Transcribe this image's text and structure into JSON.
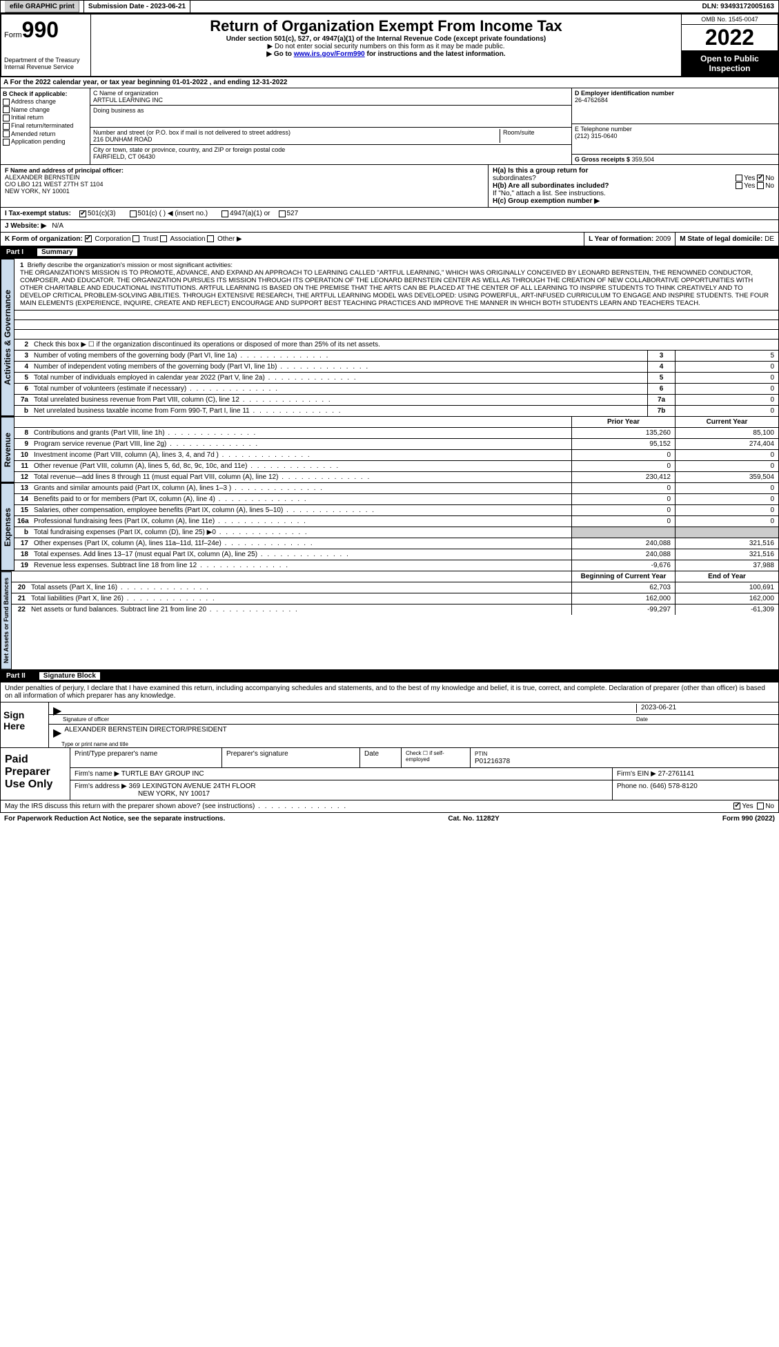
{
  "top": {
    "efile": "efile GRAPHIC print",
    "submission_label": "Submission Date - 2023-06-21",
    "dln": "DLN: 93493172005163"
  },
  "header": {
    "form_word": "Form",
    "form_num": "990",
    "title": "Return of Organization Exempt From Income Tax",
    "subtitle": "Under section 501(c), 527, or 4947(a)(1) of the Internal Revenue Code (except private foundations)",
    "note1": "▶ Do not enter social security numbers on this form as it may be made public.",
    "note2_pre": "▶ Go to ",
    "note2_link": "www.irs.gov/Form990",
    "note2_post": " for instructions and the latest information.",
    "dept": "Department of the Treasury",
    "irs": "Internal Revenue Service",
    "omb": "OMB No. 1545-0047",
    "year": "2022",
    "open": "Open to Public Inspection"
  },
  "section_a": "A For the 2022 calendar year, or tax year beginning 01-01-2022    , and ending 12-31-2022",
  "box_b": {
    "title": "B Check if applicable:",
    "items": [
      "Address change",
      "Name change",
      "Initial return",
      "Final return/terminated",
      "Amended return",
      "Application pending"
    ]
  },
  "box_c": {
    "name_label": "C Name of organization",
    "name": "ARTFUL LEARNING INC",
    "dba_label": "Doing business as",
    "addr_label": "Number and street (or P.O. box if mail is not delivered to street address)",
    "addr": "216 DUNHAM ROAD",
    "room_label": "Room/suite",
    "city_label": "City or town, state or province, country, and ZIP or foreign postal code",
    "city": "FAIRFIELD, CT  06430"
  },
  "box_d": {
    "label": "D Employer identification number",
    "val": "26-4762684"
  },
  "box_e": {
    "label": "E Telephone number",
    "val": "(212) 315-0640"
  },
  "box_g": {
    "label": "G Gross receipts $",
    "val": "359,504"
  },
  "box_f": {
    "label": "F  Name and address of principal officer:",
    "name": "ALEXANDER BERNSTEIN",
    "addr1": "C/O LBO 121 WEST 27TH ST 1104",
    "addr2": "NEW YORK, NY  10001"
  },
  "box_h": {
    "a_label": "H(a)  Is this a group return for",
    "a_sub": "subordinates?",
    "b_label": "H(b)  Are all subordinates included?",
    "b_note": "If \"No,\" attach a list. See instructions.",
    "c_label": "H(c)  Group exemption number ▶"
  },
  "tax_status": {
    "label": "I   Tax-exempt status:",
    "opts": [
      "501(c)(3)",
      "501(c) (  ) ◀ (insert no.)",
      "4947(a)(1) or",
      "527"
    ]
  },
  "website": {
    "label": "J  Website: ▶",
    "val": "N/A"
  },
  "box_k": {
    "label": "K Form of organization:",
    "opts": [
      "Corporation",
      "Trust",
      "Association",
      "Other ▶"
    ]
  },
  "box_l": {
    "label": "L Year of formation:",
    "val": "2009"
  },
  "box_m": {
    "label": "M State of legal domicile:",
    "val": "DE"
  },
  "part1": {
    "num": "Part I",
    "title": "Summary",
    "vert_ag": "Activities & Governance",
    "vert_rev": "Revenue",
    "vert_exp": "Expenses",
    "vert_net": "Net Assets or Fund Balances",
    "line1_label": "Briefly describe the organization's mission or most significant activities:",
    "mission": "THE ORGANIZATION'S MISSION IS TO PROMOTE, ADVANCE, AND EXPAND AN APPROACH TO LEARNING CALLED \"ARTFUL LEARNING,\" WHICH WAS ORIGINALLY CONCEIVED BY LEONARD BERNSTEIN, THE RENOWNED CONDUCTOR, COMPOSER, AND EDUCATOR. THE ORGANIZATION PURSUES ITS MISSION THROUGH ITS OPERATION OF THE LEONARD BERNSTEIN CENTER AS WELL AS THROUGH THE CREATION OF NEW COLLABORATIVE OPPORTUNITIES WITH OTHER CHARITABLE AND EDUCATIONAL INSTITUTIONS. ARTFUL LEARNING IS BASED ON THE PREMISE THAT THE ARTS CAN BE PLACED AT THE CENTER OF ALL LEARNING TO INSPIRE STUDENTS TO THINK CREATIVELY AND TO DEVELOP CRITICAL PROBLEM-SOLVING ABILITIES. THROUGH EXTENSIVE RESEARCH, THE ARTFUL LEARNING MODEL WAS DEVELOPED: USING POWERFUL, ART-INFUSED CURRICULUM TO ENGAGE AND INSPIRE STUDENTS. THE FOUR MAIN ELEMENTS (EXPERIENCE, INQUIRE, CREATE AND REFLECT) ENCOURAGE AND SUPPORT BEST TEACHING PRACTICES AND IMPROVE THE MANNER IN WHICH BOTH STUDENTS LEARN AND TEACHERS TEACH.",
    "line2": "Check this box ▶ ☐ if the organization discontinued its operations or disposed of more than 25% of its net assets.",
    "rows_gov": [
      {
        "n": "3",
        "label": "Number of voting members of the governing body (Part VI, line 1a)",
        "box": "3",
        "val": "5"
      },
      {
        "n": "4",
        "label": "Number of independent voting members of the governing body (Part VI, line 1b)",
        "box": "4",
        "val": "0"
      },
      {
        "n": "5",
        "label": "Total number of individuals employed in calendar year 2022 (Part V, line 2a)",
        "box": "5",
        "val": "0"
      },
      {
        "n": "6",
        "label": "Total number of volunteers (estimate if necessary)",
        "box": "6",
        "val": "0"
      },
      {
        "n": "7a",
        "label": "Total unrelated business revenue from Part VIII, column (C), line 12",
        "box": "7a",
        "val": "0"
      },
      {
        "n": "b",
        "label": "Net unrelated business taxable income from Form 990-T, Part I, line 11",
        "box": "7b",
        "val": "0"
      }
    ],
    "col_prior": "Prior Year",
    "col_current": "Current Year",
    "rows_rev": [
      {
        "n": "8",
        "label": "Contributions and grants (Part VIII, line 1h)",
        "p": "135,260",
        "c": "85,100"
      },
      {
        "n": "9",
        "label": "Program service revenue (Part VIII, line 2g)",
        "p": "95,152",
        "c": "274,404"
      },
      {
        "n": "10",
        "label": "Investment income (Part VIII, column (A), lines 3, 4, and 7d )",
        "p": "0",
        "c": "0"
      },
      {
        "n": "11",
        "label": "Other revenue (Part VIII, column (A), lines 5, 6d, 8c, 9c, 10c, and 11e)",
        "p": "0",
        "c": "0"
      },
      {
        "n": "12",
        "label": "Total revenue—add lines 8 through 11 (must equal Part VIII, column (A), line 12)",
        "p": "230,412",
        "c": "359,504"
      }
    ],
    "rows_exp": [
      {
        "n": "13",
        "label": "Grants and similar amounts paid (Part IX, column (A), lines 1–3 )",
        "p": "0",
        "c": "0"
      },
      {
        "n": "14",
        "label": "Benefits paid to or for members (Part IX, column (A), line 4)",
        "p": "0",
        "c": "0"
      },
      {
        "n": "15",
        "label": "Salaries, other compensation, employee benefits (Part IX, column (A), lines 5–10)",
        "p": "0",
        "c": "0"
      },
      {
        "n": "16a",
        "label": "Professional fundraising fees (Part IX, column (A), line 11e)",
        "p": "0",
        "c": "0"
      },
      {
        "n": "b",
        "label": "Total fundraising expenses (Part IX, column (D), line 25) ▶0",
        "p": "",
        "c": "",
        "shaded": true
      },
      {
        "n": "17",
        "label": "Other expenses (Part IX, column (A), lines 11a–11d, 11f–24e)",
        "p": "240,088",
        "c": "321,516"
      },
      {
        "n": "18",
        "label": "Total expenses. Add lines 13–17 (must equal Part IX, column (A), line 25)",
        "p": "240,088",
        "c": "321,516"
      },
      {
        "n": "19",
        "label": "Revenue less expenses. Subtract line 18 from line 12",
        "p": "-9,676",
        "c": "37,988"
      }
    ],
    "col_begin": "Beginning of Current Year",
    "col_end": "End of Year",
    "rows_net": [
      {
        "n": "20",
        "label": "Total assets (Part X, line 16)",
        "p": "62,703",
        "c": "100,691"
      },
      {
        "n": "21",
        "label": "Total liabilities (Part X, line 26)",
        "p": "162,000",
        "c": "162,000"
      },
      {
        "n": "22",
        "label": "Net assets or fund balances. Subtract line 21 from line 20",
        "p": "-99,297",
        "c": "-61,309"
      }
    ]
  },
  "part2": {
    "num": "Part II",
    "title": "Signature Block",
    "decl": "Under penalties of perjury, I declare that I have examined this return, including accompanying schedules and statements, and to the best of my knowledge and belief, it is true, correct, and complete. Declaration of preparer (other than officer) is based on all information of which preparer has any knowledge.",
    "sign_here": "Sign Here",
    "sig_officer": "Signature of officer",
    "sig_date_val": "2023-06-21",
    "sig_date": "Date",
    "sig_name": "ALEXANDER BERNSTEIN  DIRECTOR/PRESIDENT",
    "sig_name_label": "Type or print name and title",
    "paid": "Paid Preparer Use Only",
    "prep_name_label": "Print/Type preparer's name",
    "prep_sig_label": "Preparer's signature",
    "prep_date_label": "Date",
    "prep_check": "Check ☐ if self-employed",
    "prep_ptin_label": "PTIN",
    "prep_ptin": "P01216378",
    "firm_name_label": "Firm's name    ▶",
    "firm_name": "TURTLE BAY GROUP INC",
    "firm_ein_label": "Firm's EIN ▶",
    "firm_ein": "27-2761141",
    "firm_addr_label": "Firm's address ▶",
    "firm_addr1": "369 LEXINGTON AVENUE 24TH FLOOR",
    "firm_addr2": "NEW YORK, NY  10017",
    "firm_phone_label": "Phone no.",
    "firm_phone": "(646) 578-8120",
    "discuss": "May the IRS discuss this return with the preparer shown above? (see instructions)",
    "yes": "Yes",
    "no": "No"
  },
  "footer": {
    "paperwork": "For Paperwork Reduction Act Notice, see the separate instructions.",
    "cat": "Cat. No. 11282Y",
    "formref": "Form 990 (2022)"
  }
}
